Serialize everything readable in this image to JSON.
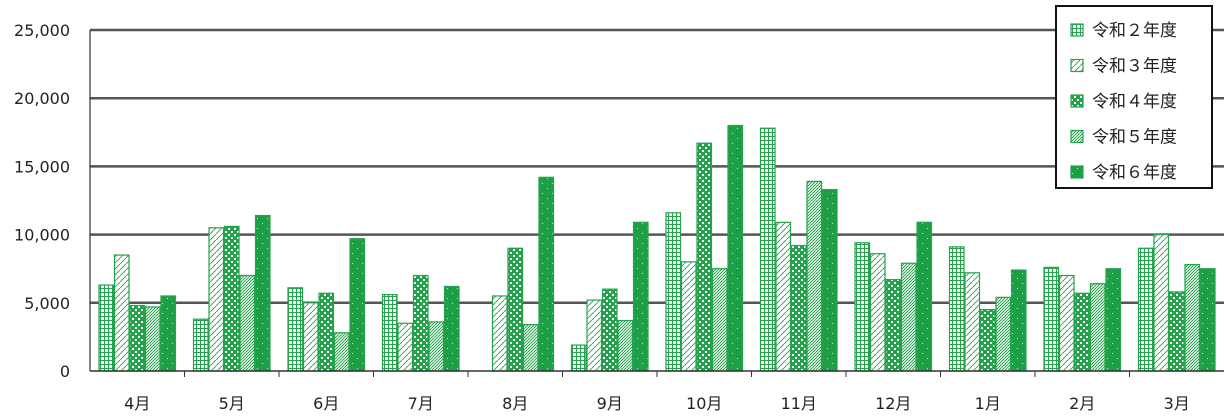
{
  "chart_data": {
    "type": "bar",
    "title": "",
    "xlabel": "",
    "ylabel": "",
    "ylim": [
      0,
      25000
    ],
    "yticks": [
      "0",
      "5,000",
      "10,000",
      "15,000",
      "20,000",
      "25,000"
    ],
    "grid": true,
    "legend_position": "top-right",
    "categories": [
      "4月",
      "5月",
      "6月",
      "7月",
      "8月",
      "9月",
      "10月",
      "11月",
      "12月",
      "1月",
      "2月",
      "3月"
    ],
    "series": [
      {
        "name": "令和２年度",
        "pattern": "grid-pattern",
        "values": [
          6300,
          3800,
          6100,
          5600,
          0,
          1900,
          11600,
          17800,
          9400,
          9100,
          7600,
          9000
        ]
      },
      {
        "name": "令和３年度",
        "pattern": "diagonal-pattern",
        "values": [
          8500,
          10500,
          5000,
          3500,
          5500,
          5200,
          8000,
          10900,
          8600,
          7200,
          7000,
          10000
        ]
      },
      {
        "name": "令和４年度",
        "pattern": "checker-pattern",
        "values": [
          4800,
          10600,
          5700,
          7000,
          9000,
          6000,
          16700,
          9200,
          6700,
          4500,
          5700,
          5800
        ]
      },
      {
        "name": "令和５年度",
        "pattern": "stipple-pattern",
        "values": [
          4700,
          7000,
          2800,
          3600,
          3400,
          3700,
          7500,
          13900,
          7900,
          5400,
          6400,
          7800
        ]
      },
      {
        "name": "令和６年度",
        "pattern": "dotted-solid-pattern",
        "values": [
          5500,
          11400,
          9700,
          6200,
          14200,
          10900,
          18000,
          13300,
          10900,
          7400,
          7500,
          7500
        ]
      }
    ],
    "colors": {
      "series": "#24a24c",
      "grid": "#555555",
      "axis": "#333333",
      "text": "#222222"
    }
  }
}
